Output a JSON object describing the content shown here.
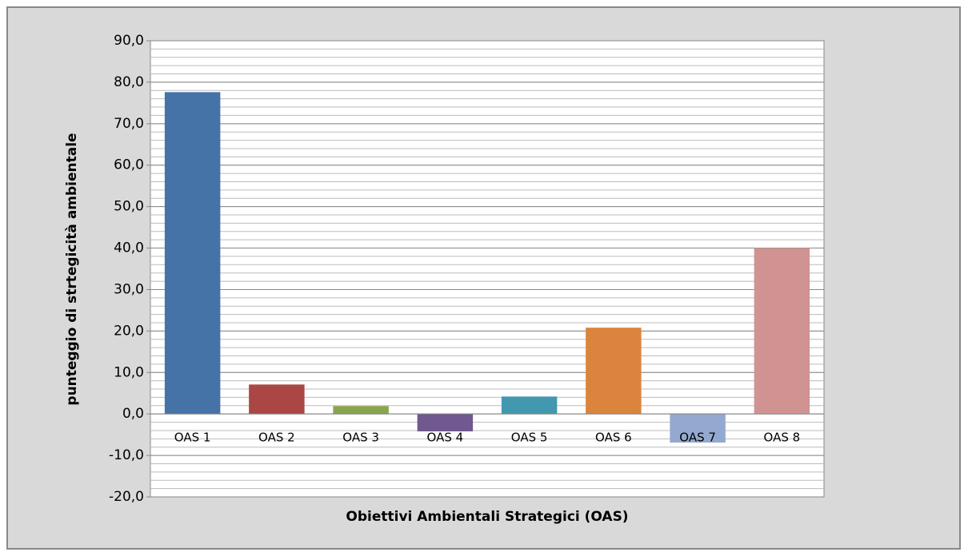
{
  "chart_data": {
    "type": "bar",
    "x_label": "Obiettivi Ambientali Strategici (OAS)",
    "y_label": "punteggio di strtegicità ambientale",
    "categories": [
      "OAS 1",
      "OAS 2",
      "OAS 3",
      "OAS 4",
      "OAS 5",
      "OAS 6",
      "OAS 7",
      "OAS 8"
    ],
    "values": [
      77.6,
      7.1,
      1.9,
      -4.2,
      4.2,
      20.8,
      -6.9,
      40.0
    ],
    "colors": [
      "#4572a7",
      "#aa4643",
      "#89a54e",
      "#71588f",
      "#4198af",
      "#db843d",
      "#93a9cf",
      "#d19392"
    ],
    "ylim": [
      -20,
      90
    ],
    "yticks": [
      {
        "value": -20,
        "label": "-20,0"
      },
      {
        "value": -10,
        "label": "-10,0"
      },
      {
        "value": 0,
        "label": "0,0"
      },
      {
        "value": 10,
        "label": "10,0"
      },
      {
        "value": 20,
        "label": "20,0"
      },
      {
        "value": 30,
        "label": "30,0"
      },
      {
        "value": 40,
        "label": "40,0"
      },
      {
        "value": 50,
        "label": "50,0"
      },
      {
        "value": 60,
        "label": "60,0"
      },
      {
        "value": 70,
        "label": "70,0"
      },
      {
        "value": 80,
        "label": "80,0"
      },
      {
        "value": 90,
        "label": "90,0"
      }
    ],
    "grid": true,
    "minor_grid": 2
  }
}
